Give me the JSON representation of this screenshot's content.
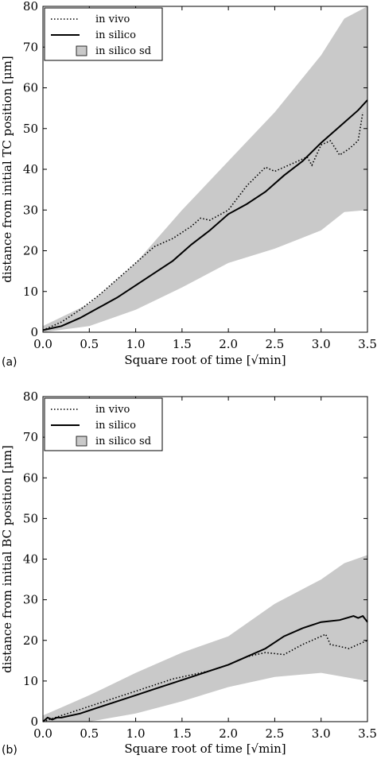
{
  "chart_data": [
    {
      "type": "line",
      "panel_label": "(a)",
      "xlabel": "Square root of time [√min]",
      "ylabel": "distance from initial TC position [μm]",
      "xlim": [
        0,
        3.5
      ],
      "ylim": [
        0,
        80
      ],
      "xticks": [
        "0.0",
        "0.5",
        "1.0",
        "1.5",
        "2.0",
        "2.5",
        "3.0",
        "3.5"
      ],
      "yticks": [
        "0",
        "10",
        "20",
        "30",
        "40",
        "50",
        "60",
        "70",
        "80"
      ],
      "legend": {
        "position": "top-left",
        "entries": [
          "in vivo",
          "in silico",
          "in silico sd"
        ]
      },
      "series": [
        {
          "name": "in vivo",
          "style": "dotted",
          "x": [
            0,
            0.2,
            0.4,
            0.6,
            0.8,
            1.0,
            1.2,
            1.4,
            1.6,
            1.7,
            1.8,
            2.0,
            2.2,
            2.4,
            2.5,
            2.7,
            2.85,
            2.9,
            3.0,
            3.1,
            3.2,
            3.3,
            3.4,
            3.45
          ],
          "y": [
            0.5,
            2.5,
            5.5,
            9,
            13,
            17,
            21,
            23,
            26,
            28,
            27.5,
            30,
            36,
            40.5,
            39.5,
            41.5,
            43,
            41,
            46,
            47,
            43.5,
            45,
            47,
            54
          ]
        },
        {
          "name": "in silico",
          "style": "solid",
          "x": [
            0,
            0.2,
            0.4,
            0.6,
            0.8,
            1.0,
            1.2,
            1.4,
            1.6,
            1.8,
            2.0,
            2.2,
            2.4,
            2.6,
            2.8,
            3.0,
            3.2,
            3.4,
            3.5
          ],
          "y": [
            0.5,
            1.5,
            3.5,
            6,
            8.5,
            11.5,
            14.5,
            17.5,
            21.5,
            25,
            29,
            31.5,
            34.5,
            38.5,
            42,
            46.5,
            50.5,
            54.5,
            57
          ]
        },
        {
          "name": "in silico sd",
          "style": "band",
          "x": [
            0,
            0.5,
            1.0,
            1.5,
            2.0,
            2.5,
            3.0,
            3.25,
            3.5
          ],
          "lower": [
            0,
            1.5,
            5.5,
            11,
            17,
            20.5,
            25,
            29.5,
            30
          ],
          "upper": [
            1.5,
            7,
            17,
            30,
            42,
            54,
            68,
            77,
            80
          ]
        }
      ]
    },
    {
      "type": "line",
      "panel_label": "(b)",
      "xlabel": "Square root of time [√min]",
      "ylabel": "distance from initial BC position [μm]",
      "xlim": [
        0,
        3.5
      ],
      "ylim": [
        0,
        80
      ],
      "xticks": [
        "0.0",
        "0.5",
        "1.0",
        "1.5",
        "2.0",
        "2.5",
        "3.0",
        "3.5"
      ],
      "yticks": [
        "0",
        "10",
        "20",
        "30",
        "40",
        "50",
        "60",
        "70",
        "80"
      ],
      "legend": {
        "position": "top-left",
        "entries": [
          "in vivo",
          "in silico",
          "in silico sd"
        ]
      },
      "series": [
        {
          "name": "in vivo",
          "style": "dotted",
          "x": [
            0,
            0.2,
            0.4,
            0.6,
            0.8,
            1.0,
            1.2,
            1.4,
            1.6,
            1.8,
            2.0,
            2.2,
            2.4,
            2.6,
            2.8,
            2.9,
            3.0,
            3.05,
            3.1,
            3.2,
            3.3,
            3.4,
            3.5
          ],
          "y": [
            0,
            1.5,
            3,
            4.5,
            6,
            7.5,
            9,
            10.5,
            11.5,
            12.5,
            14,
            16,
            17,
            16.5,
            19,
            20,
            21,
            21.5,
            19,
            18.5,
            18,
            19,
            20
          ]
        },
        {
          "name": "in silico",
          "style": "solid",
          "x": [
            0,
            0.05,
            0.1,
            0.15,
            0.2,
            0.4,
            0.6,
            0.8,
            1.0,
            1.2,
            1.4,
            1.6,
            1.8,
            2.0,
            2.2,
            2.4,
            2.6,
            2.8,
            3.0,
            3.2,
            3.35,
            3.4,
            3.45,
            3.5
          ],
          "y": [
            0,
            1,
            0.5,
            1,
            1,
            2,
            3.5,
            5,
            6.5,
            8,
            9.5,
            11,
            12.5,
            14,
            16,
            18,
            21,
            23,
            24.5,
            25,
            26,
            25.5,
            26,
            24.5
          ]
        },
        {
          "name": "in silico sd",
          "style": "band",
          "x": [
            0,
            0.5,
            1.0,
            1.5,
            2.0,
            2.5,
            3.0,
            3.25,
            3.5
          ],
          "lower": [
            0,
            0,
            2,
            5,
            8.5,
            11,
            12,
            11,
            10
          ],
          "upper": [
            1.5,
            6.5,
            12,
            17,
            21,
            29,
            35,
            39,
            41
          ]
        }
      ]
    }
  ]
}
